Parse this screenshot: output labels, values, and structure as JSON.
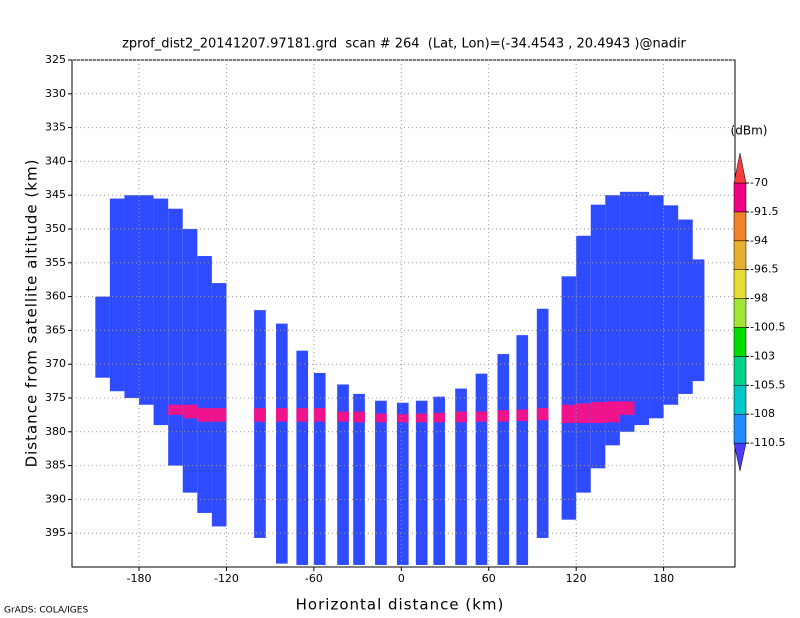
{
  "chart_data": {
    "type": "profile",
    "title": "zprof_dist2_20141207.97181.grd  scan # 264  (Lat, Lon)=(-34.4543 , 20.4943 )@nadir",
    "x_label": "Horizontal distance (km)",
    "y_label": "Distance from satellite altitude (km)",
    "footer": "GrADS: COLA/IGES",
    "colorbar_label": "(dBm)",
    "xlim": [
      -226,
      229
    ],
    "xticks": [
      -180,
      -120,
      -60,
      0,
      60,
      120,
      180
    ],
    "ylim": [
      325,
      400
    ],
    "yticks": [
      325,
      330,
      335,
      340,
      345,
      350,
      355,
      360,
      365,
      370,
      375,
      380,
      385,
      390,
      395
    ],
    "grid": true,
    "levels": [
      -110.5,
      -108,
      -105.5,
      -103,
      -100.5,
      -98,
      -96.5,
      -94,
      -91.5,
      -70
    ],
    "colors": [
      "#4b3cff",
      "#1e8cff",
      "#00c8c8",
      "#00d28c",
      "#00dc00",
      "#a0e632",
      "#e6dc32",
      "#e6af2d",
      "#f08228",
      "#f00082",
      "#fa3c3c"
    ],
    "field_color": "#2f4bff",
    "band_color": "#f0148c",
    "x": [
      -205,
      -195,
      -185,
      -175,
      -165,
      -155,
      -145,
      -135,
      -125,
      -97,
      -82,
      -68,
      -56,
      -40,
      -29,
      -14,
      1,
      14,
      26,
      41,
      55,
      70,
      83,
      97,
      115,
      125,
      135,
      145,
      155,
      165,
      175,
      185,
      195,
      203
    ],
    "top": [
      360,
      345.5,
      345,
      345,
      345.5,
      347,
      350,
      354,
      358,
      362,
      364,
      368,
      371.3,
      373,
      374.4,
      375.4,
      375.7,
      375.4,
      374.8,
      373.6,
      371.4,
      368.5,
      365.7,
      361.8,
      357,
      351,
      346.4,
      345,
      344.5,
      344.5,
      345,
      346.5,
      348.6,
      354.5
    ],
    "bottom": [
      372,
      374,
      375,
      376,
      379,
      385,
      389,
      392,
      394,
      395.7,
      399.5,
      399.7,
      399.7,
      399.7,
      399.7,
      399.7,
      399.7,
      399.7,
      399.7,
      399.7,
      399.7,
      399.7,
      399.7,
      395.7,
      393,
      389,
      385.4,
      382,
      380,
      379,
      378,
      376,
      374.4,
      372.5
    ],
    "band_top": [
      null,
      null,
      null,
      null,
      null,
      376,
      376,
      376.5,
      376.5,
      376.5,
      376.5,
      376.5,
      376.5,
      377,
      377,
      377.3,
      377.4,
      377.3,
      377.2,
      377,
      377,
      376.8,
      376.7,
      376.5,
      376,
      375.8,
      375.6,
      375.5,
      375.5,
      null,
      null,
      null,
      null,
      null
    ],
    "band_bottom": [
      null,
      null,
      null,
      null,
      null,
      377.5,
      378,
      378.5,
      378.5,
      378.5,
      378.5,
      378.5,
      378.5,
      378.5,
      378.6,
      378.6,
      378.6,
      378.6,
      378.6,
      378.6,
      378.5,
      378.5,
      378.4,
      378.3,
      378.7,
      378.7,
      378.7,
      378.6,
      377.5,
      null,
      null,
      null,
      null,
      null
    ]
  }
}
